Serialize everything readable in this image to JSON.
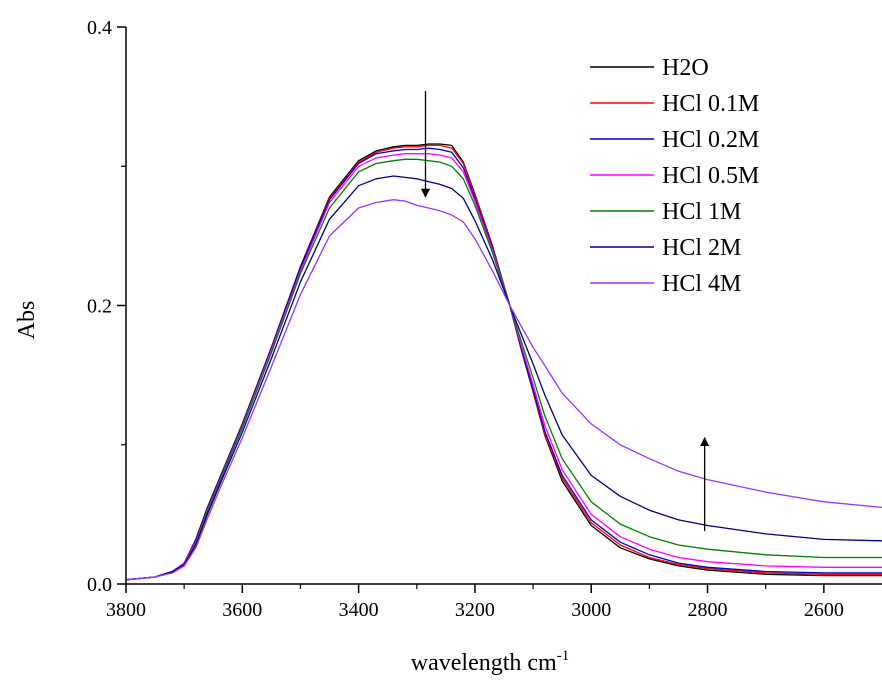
{
  "chart_data": {
    "type": "line",
    "title": "",
    "xlabel": "wavelength cm",
    "xlabel_sup": "-1",
    "ylabel": "Abs",
    "xlim": [
      3800,
      2500
    ],
    "ylim": [
      0,
      0.4
    ],
    "x_reversed": true,
    "x_ticks": [
      3800,
      3600,
      3400,
      3200,
      3000,
      2800,
      2600
    ],
    "x_tick_labels": [
      "3800",
      "3600",
      "3400",
      "3200",
      "3000",
      "2800",
      "2600"
    ],
    "y_ticks": [
      0,
      0.2,
      0.4
    ],
    "y_tick_labels": [
      "0.0",
      "0.2",
      "0.4"
    ],
    "grid": false,
    "legend_position": "top-right",
    "x": [
      3800,
      3750,
      3720,
      3700,
      3680,
      3660,
      3640,
      3600,
      3550,
      3500,
      3450,
      3400,
      3370,
      3340,
      3320,
      3300,
      3280,
      3260,
      3240,
      3220,
      3200,
      3170,
      3140,
      3120,
      3100,
      3080,
      3050,
      3000,
      2950,
      2900,
      2850,
      2800,
      2700,
      2600,
      2500
    ],
    "series": [
      {
        "name": "H2O",
        "color": "#000000",
        "values": [
          0.003,
          0.005,
          0.009,
          0.015,
          0.032,
          0.055,
          0.075,
          0.115,
          0.17,
          0.228,
          0.278,
          0.304,
          0.311,
          0.314,
          0.315,
          0.315,
          0.316,
          0.316,
          0.315,
          0.303,
          0.28,
          0.243,
          0.2,
          0.168,
          0.138,
          0.107,
          0.074,
          0.042,
          0.026,
          0.018,
          0.013,
          0.01,
          0.007,
          0.006,
          0.006
        ]
      },
      {
        "name": "HCl 0.1M",
        "color": "#ff0000",
        "values": [
          0.003,
          0.005,
          0.009,
          0.015,
          0.031,
          0.054,
          0.074,
          0.114,
          0.169,
          0.227,
          0.277,
          0.303,
          0.31,
          0.313,
          0.314,
          0.314,
          0.315,
          0.315,
          0.313,
          0.302,
          0.279,
          0.242,
          0.2,
          0.169,
          0.139,
          0.108,
          0.076,
          0.044,
          0.028,
          0.019,
          0.014,
          0.011,
          0.008,
          0.007,
          0.007
        ]
      },
      {
        "name": "HCl 0.2M",
        "color": "#0000cc",
        "values": [
          0.003,
          0.005,
          0.009,
          0.015,
          0.031,
          0.054,
          0.074,
          0.114,
          0.169,
          0.227,
          0.276,
          0.302,
          0.309,
          0.311,
          0.312,
          0.312,
          0.313,
          0.312,
          0.31,
          0.299,
          0.277,
          0.241,
          0.2,
          0.169,
          0.14,
          0.11,
          0.078,
          0.046,
          0.03,
          0.021,
          0.015,
          0.012,
          0.009,
          0.008,
          0.008
        ]
      },
      {
        "name": "HCl 0.5M",
        "color": "#ff00ff",
        "values": [
          0.003,
          0.005,
          0.009,
          0.015,
          0.03,
          0.053,
          0.073,
          0.113,
          0.168,
          0.225,
          0.274,
          0.3,
          0.306,
          0.308,
          0.309,
          0.309,
          0.309,
          0.308,
          0.306,
          0.296,
          0.275,
          0.24,
          0.2,
          0.171,
          0.143,
          0.114,
          0.082,
          0.05,
          0.034,
          0.025,
          0.019,
          0.016,
          0.013,
          0.012,
          0.012
        ]
      },
      {
        "name": "HCl 1M",
        "color": "#008000",
        "values": [
          0.003,
          0.005,
          0.009,
          0.014,
          0.029,
          0.052,
          0.072,
          0.112,
          0.166,
          0.223,
          0.27,
          0.296,
          0.302,
          0.304,
          0.305,
          0.305,
          0.304,
          0.303,
          0.3,
          0.291,
          0.272,
          0.238,
          0.2,
          0.174,
          0.148,
          0.121,
          0.09,
          0.059,
          0.043,
          0.034,
          0.028,
          0.025,
          0.021,
          0.019,
          0.019
        ]
      },
      {
        "name": "HCl 2M",
        "color": "#000080",
        "values": [
          0.003,
          0.005,
          0.009,
          0.014,
          0.028,
          0.05,
          0.07,
          0.109,
          0.162,
          0.217,
          0.262,
          0.286,
          0.291,
          0.293,
          0.292,
          0.291,
          0.289,
          0.287,
          0.284,
          0.277,
          0.261,
          0.233,
          0.2,
          0.179,
          0.158,
          0.136,
          0.107,
          0.078,
          0.063,
          0.053,
          0.046,
          0.042,
          0.036,
          0.032,
          0.031
        ]
      },
      {
        "name": "HCl 4M",
        "color": "#9933ff",
        "values": [
          0.003,
          0.005,
          0.008,
          0.013,
          0.026,
          0.047,
          0.067,
          0.105,
          0.156,
          0.208,
          0.25,
          0.27,
          0.274,
          0.276,
          0.275,
          0.272,
          0.27,
          0.268,
          0.265,
          0.26,
          0.248,
          0.225,
          0.2,
          0.185,
          0.17,
          0.157,
          0.137,
          0.115,
          0.1,
          0.09,
          0.081,
          0.075,
          0.066,
          0.059,
          0.055
        ]
      }
    ],
    "annotations": [
      {
        "type": "arrow",
        "direction": "down",
        "x": 3285,
        "y_from": 0.354,
        "y_to": 0.278
      },
      {
        "type": "arrow",
        "direction": "up",
        "x": 2805,
        "y_from": 0.038,
        "y_to": 0.105
      }
    ]
  }
}
